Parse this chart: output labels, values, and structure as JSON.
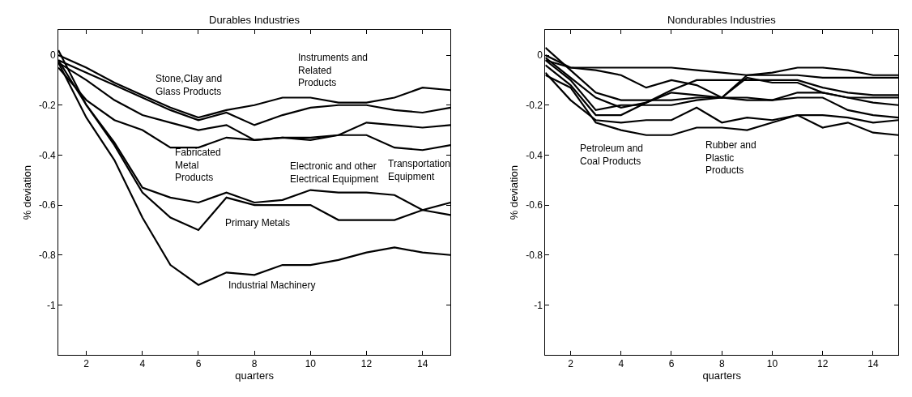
{
  "chart_data": [
    {
      "type": "line",
      "title": "Durables Industries",
      "xlabel": "quarters",
      "ylabel": "% deviation",
      "x": [
        1,
        2,
        3,
        4,
        5,
        6,
        7,
        8,
        9,
        10,
        11,
        12,
        13,
        14,
        15
      ],
      "xlim": [
        1,
        15
      ],
      "xticks": [
        2,
        4,
        6,
        8,
        10,
        12,
        14
      ],
      "ylim": [
        -1.2,
        0.1
      ],
      "yticks": [
        0,
        -0.2,
        -0.4,
        -0.6,
        -0.8,
        -1
      ],
      "line_style": "solid",
      "series": [
        {
          "color": "#000000",
          "values": [
            0,
            -0.05,
            -0.11,
            -0.16,
            -0.21,
            -0.25,
            -0.22,
            -0.2,
            -0.17,
            -0.17,
            -0.19,
            -0.19,
            -0.17,
            -0.13,
            -0.14
          ]
        },
        {
          "color": "#000000",
          "values": [
            -0.02,
            -0.07,
            -0.12,
            -0.17,
            -0.22,
            -0.26,
            -0.23,
            -0.28,
            -0.24,
            -0.21,
            -0.2,
            -0.2,
            -0.22,
            -0.23,
            -0.21
          ]
        },
        {
          "color": "#000000",
          "values": [
            -0.03,
            -0.1,
            -0.18,
            -0.24,
            -0.27,
            -0.3,
            -0.28,
            -0.34,
            -0.33,
            -0.34,
            -0.32,
            -0.27,
            -0.28,
            -0.29,
            -0.28
          ]
        },
        {
          "color": "#000000",
          "values": [
            -0.05,
            -0.18,
            -0.26,
            -0.3,
            -0.37,
            -0.37,
            -0.33,
            -0.34,
            -0.33,
            -0.33,
            -0.32,
            -0.32,
            -0.37,
            -0.38,
            -0.36
          ]
        },
        {
          "color": "#000000",
          "values": [
            0.02,
            -0.2,
            -0.35,
            -0.53,
            -0.57,
            -0.59,
            -0.55,
            -0.59,
            -0.58,
            -0.54,
            -0.55,
            -0.55,
            -0.56,
            -0.62,
            -0.64
          ]
        },
        {
          "color": "#000000",
          "values": [
            -0.02,
            -0.2,
            -0.36,
            -0.55,
            -0.65,
            -0.7,
            -0.57,
            -0.6,
            -0.6,
            -0.6,
            -0.66,
            -0.66,
            -0.66,
            -0.62,
            -0.59
          ]
        },
        {
          "color": "#000000",
          "values": [
            -0.03,
            -0.25,
            -0.42,
            -0.65,
            -0.84,
            -0.92,
            -0.87,
            -0.88,
            -0.84,
            -0.84,
            -0.82,
            -0.79,
            -0.77,
            -0.79,
            -0.8
          ]
        }
      ],
      "annotations": [
        "Stone,Clay and\nGlass Products",
        "Instruments and\nRelated\nProducts",
        "Fabricated\nMetal\nProducts",
        "Transportation\nEquipment",
        "Electronic and other\nElectrical Equipment",
        "Primary Metals",
        "Industrial Machinery"
      ]
    },
    {
      "type": "line",
      "title": "Nondurables Industries",
      "xlabel": "quarters",
      "ylabel": "% deviation",
      "x": [
        1,
        2,
        3,
        4,
        5,
        6,
        7,
        8,
        9,
        10,
        11,
        12,
        13,
        14,
        15
      ],
      "xlim": [
        1,
        15
      ],
      "xticks": [
        2,
        4,
        6,
        8,
        10,
        12,
        14
      ],
      "ylim": [
        -1.2,
        0.1
      ],
      "yticks": [
        0,
        -0.2,
        -0.4,
        -0.6,
        -0.8,
        -1
      ],
      "line_style": "solid",
      "series": [
        {
          "color": "#000000",
          "values": [
            0.0,
            -0.05,
            -0.05,
            -0.05,
            -0.05,
            -0.05,
            -0.06,
            -0.07,
            -0.08,
            -0.07,
            -0.05,
            -0.05,
            -0.06,
            -0.08,
            -0.08
          ]
        },
        {
          "color": "#000000",
          "values": [
            -0.02,
            -0.05,
            -0.06,
            -0.08,
            -0.13,
            -0.1,
            -0.12,
            -0.17,
            -0.08,
            -0.08,
            -0.08,
            -0.09,
            -0.09,
            -0.09,
            -0.09
          ]
        },
        {
          "color": "#000000",
          "values": [
            0.03,
            -0.06,
            -0.15,
            -0.18,
            -0.18,
            -0.18,
            -0.17,
            -0.17,
            -0.09,
            -0.11,
            -0.11,
            -0.15,
            -0.17,
            -0.19,
            -0.2
          ]
        },
        {
          "color": "#000000",
          "values": [
            -0.01,
            -0.09,
            -0.17,
            -0.21,
            -0.19,
            -0.14,
            -0.1,
            -0.1,
            -0.1,
            -0.1,
            -0.1,
            -0.13,
            -0.15,
            -0.16,
            -0.16
          ]
        },
        {
          "color": "#000000",
          "values": [
            -0.02,
            -0.1,
            -0.22,
            -0.2,
            -0.2,
            -0.2,
            -0.18,
            -0.17,
            -0.18,
            -0.18,
            -0.15,
            -0.15,
            -0.17,
            -0.17,
            -0.17
          ]
        },
        {
          "color": "#000000",
          "values": [
            -0.04,
            -0.12,
            -0.24,
            -0.24,
            -0.19,
            -0.15,
            -0.16,
            -0.17,
            -0.17,
            -0.18,
            -0.17,
            -0.17,
            -0.22,
            -0.24,
            -0.25
          ]
        },
        {
          "color": "#000000",
          "values": [
            -0.07,
            -0.18,
            -0.26,
            -0.27,
            -0.26,
            -0.26,
            -0.21,
            -0.27,
            -0.25,
            -0.26,
            -0.24,
            -0.24,
            -0.25,
            -0.27,
            -0.26
          ]
        },
        {
          "color": "#000000",
          "values": [
            -0.08,
            -0.13,
            -0.27,
            -0.3,
            -0.32,
            -0.32,
            -0.29,
            -0.29,
            -0.3,
            -0.27,
            -0.24,
            -0.29,
            -0.27,
            -0.31,
            -0.32
          ]
        }
      ],
      "annotations": [
        "Petroleum and\nCoal Products",
        "Rubber and\nPlastic\nProducts"
      ]
    }
  ]
}
